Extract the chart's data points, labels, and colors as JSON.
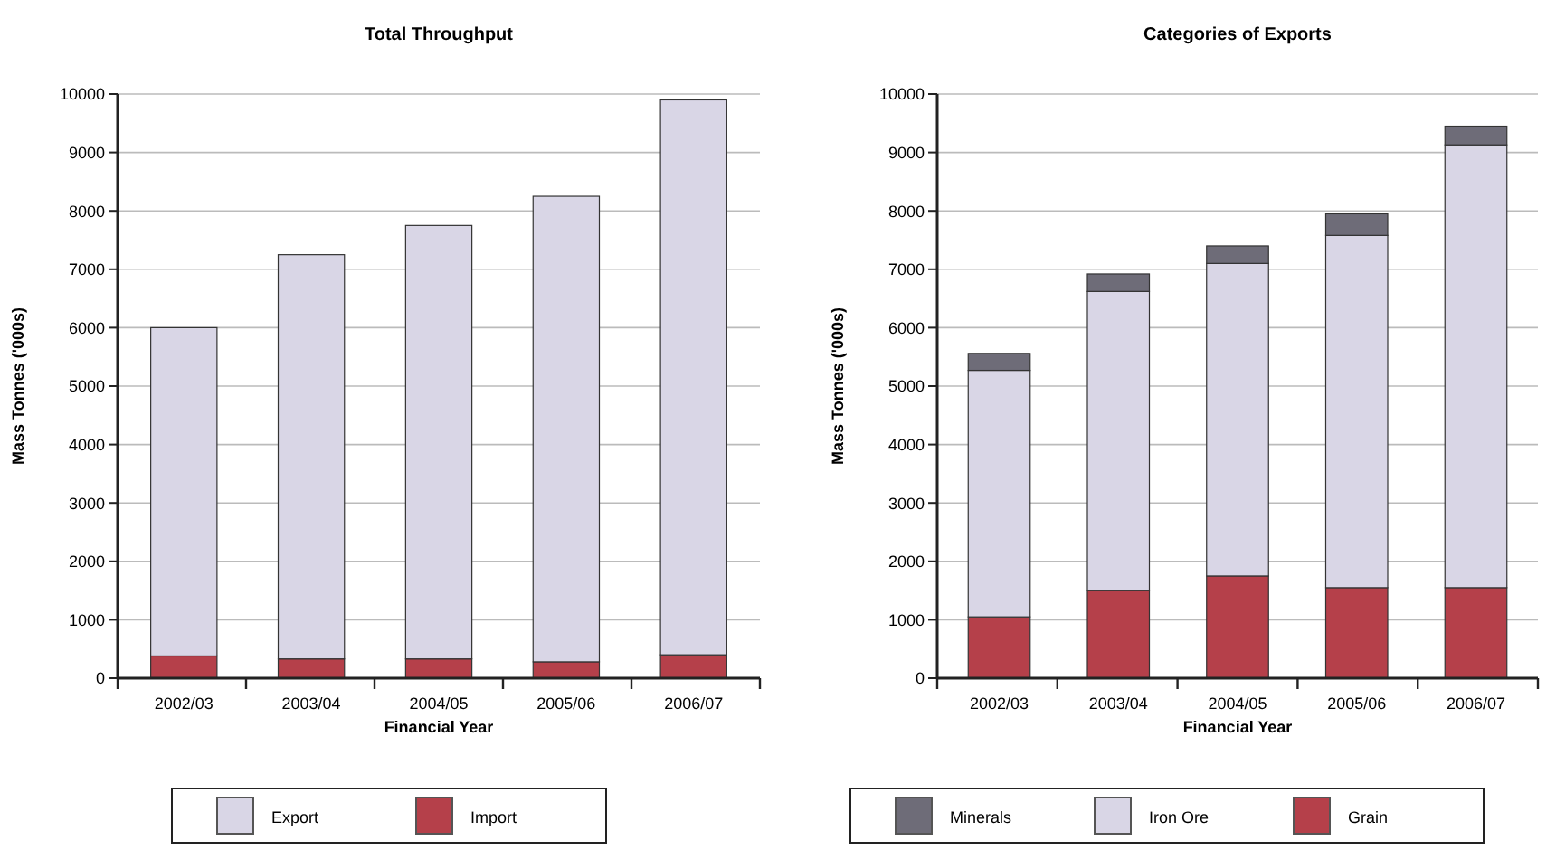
{
  "chart_data": [
    {
      "type": "bar",
      "title": "Total Throughput",
      "xlabel": "Financial Year",
      "ylabel": "Mass Tonnes ('000s)",
      "categories": [
        "2002/03",
        "2003/04",
        "2004/05",
        "2005/06",
        "2006/07"
      ],
      "stacked": true,
      "ylim": [
        0,
        10000
      ],
      "yticks": [
        0,
        1000,
        2000,
        3000,
        4000,
        5000,
        6000,
        7000,
        8000,
        9000,
        10000
      ],
      "grid": "y",
      "legend": "bottom",
      "series": [
        {
          "name": "Import",
          "color": "#b5404a",
          "values": [
            380,
            330,
            330,
            280,
            400
          ]
        },
        {
          "name": "Export",
          "color": "#d9d6e6",
          "values": [
            5620,
            6920,
            7420,
            7970,
            9500
          ]
        }
      ]
    },
    {
      "type": "bar",
      "title": "Categories of Exports",
      "xlabel": "Financial Year",
      "ylabel": "Mass Tonnes ('000s)",
      "categories": [
        "2002/03",
        "2003/04",
        "2004/05",
        "2005/06",
        "2006/07"
      ],
      "stacked": true,
      "ylim": [
        0,
        10000
      ],
      "yticks": [
        0,
        1000,
        2000,
        3000,
        4000,
        5000,
        6000,
        7000,
        8000,
        9000,
        10000
      ],
      "grid": "y",
      "legend": "bottom",
      "series": [
        {
          "name": "Grain",
          "color": "#b5404a",
          "values": [
            1050,
            1500,
            1750,
            1550,
            1550
          ]
        },
        {
          "name": "Iron Ore",
          "color": "#d9d6e6",
          "values": [
            4220,
            5120,
            5350,
            6030,
            7580
          ]
        },
        {
          "name": "Minerals",
          "color": "#6e6c78",
          "values": [
            290,
            300,
            300,
            370,
            320
          ]
        }
      ]
    }
  ]
}
